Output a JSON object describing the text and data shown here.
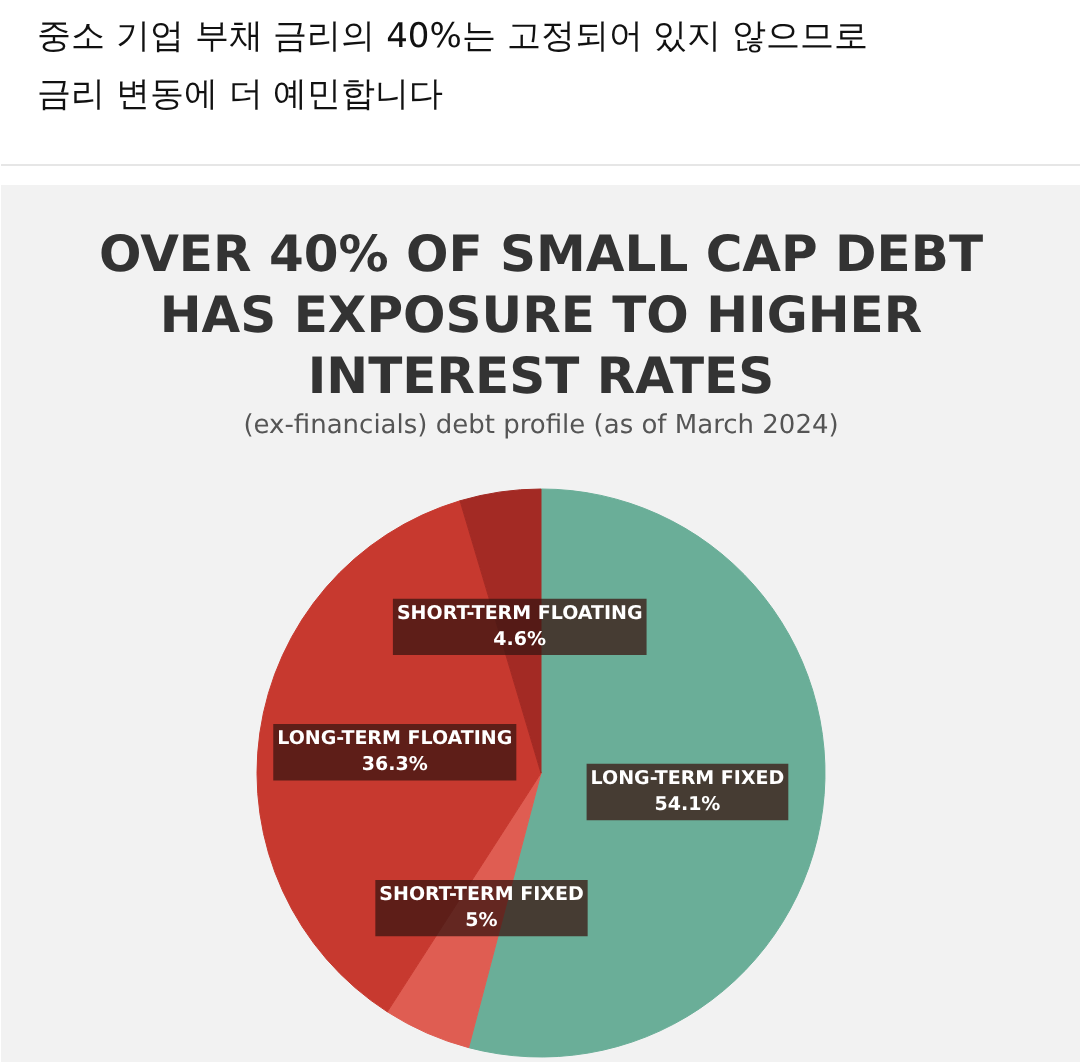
{
  "chart_data": {
    "type": "pie",
    "title": "중소 기업 부채 금리의 40%는 고정되어 있지 않으므로\n금리 변동에 더 예민합니다",
    "subtitle": "OVER 40% OF SMALL CAP DEBT\nHAS EXPOSURE TO HIGHER\nINTEREST RATES",
    "annotations": [
      "(ex-financials) debt profile (as of March 2024)"
    ],
    "categories": [
      "LONG-TERM FIXED",
      "SHORT-TERM FIXED",
      "LONG-TERM FLOATING",
      "SHORT-TERM FLOATING"
    ],
    "values": [
      54.1,
      5,
      36.3,
      4.6
    ],
    "value_labels": [
      "54.1%",
      "5%",
      "36.3%",
      "4.6%"
    ],
    "colors": [
      "#6aae98",
      "#df5d52",
      "#c7392f",
      "#a32a24"
    ]
  }
}
